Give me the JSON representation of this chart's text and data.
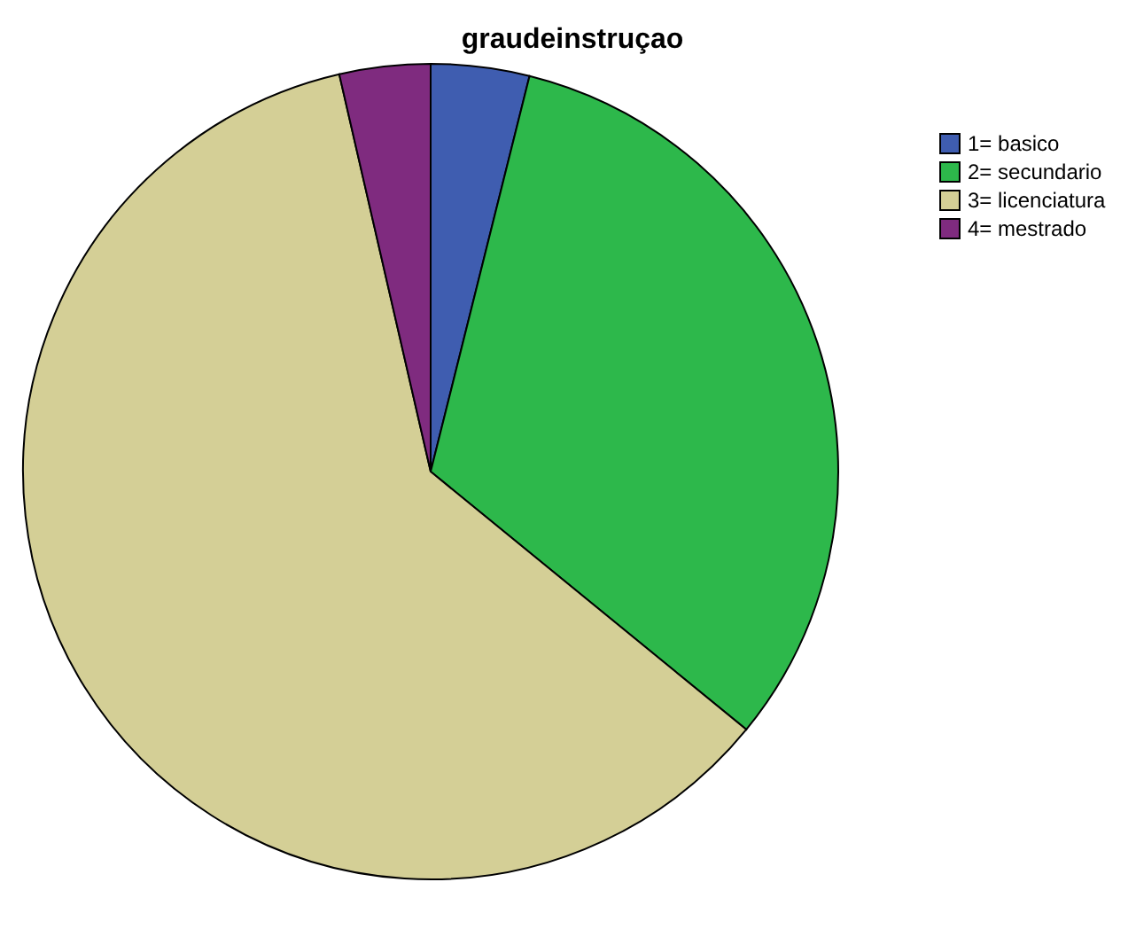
{
  "chart_data": {
    "type": "pie",
    "title": "graudeinstruçao",
    "categories": [
      "1= basico",
      "2= secundario",
      "3= licenciatura",
      "4= mestrado"
    ],
    "values": [
      3.9,
      32.0,
      60.5,
      3.6
    ],
    "colors": [
      "#3f5db0",
      "#2db84b",
      "#d4cf96",
      "#7f2b7f"
    ],
    "legend": "top right"
  }
}
